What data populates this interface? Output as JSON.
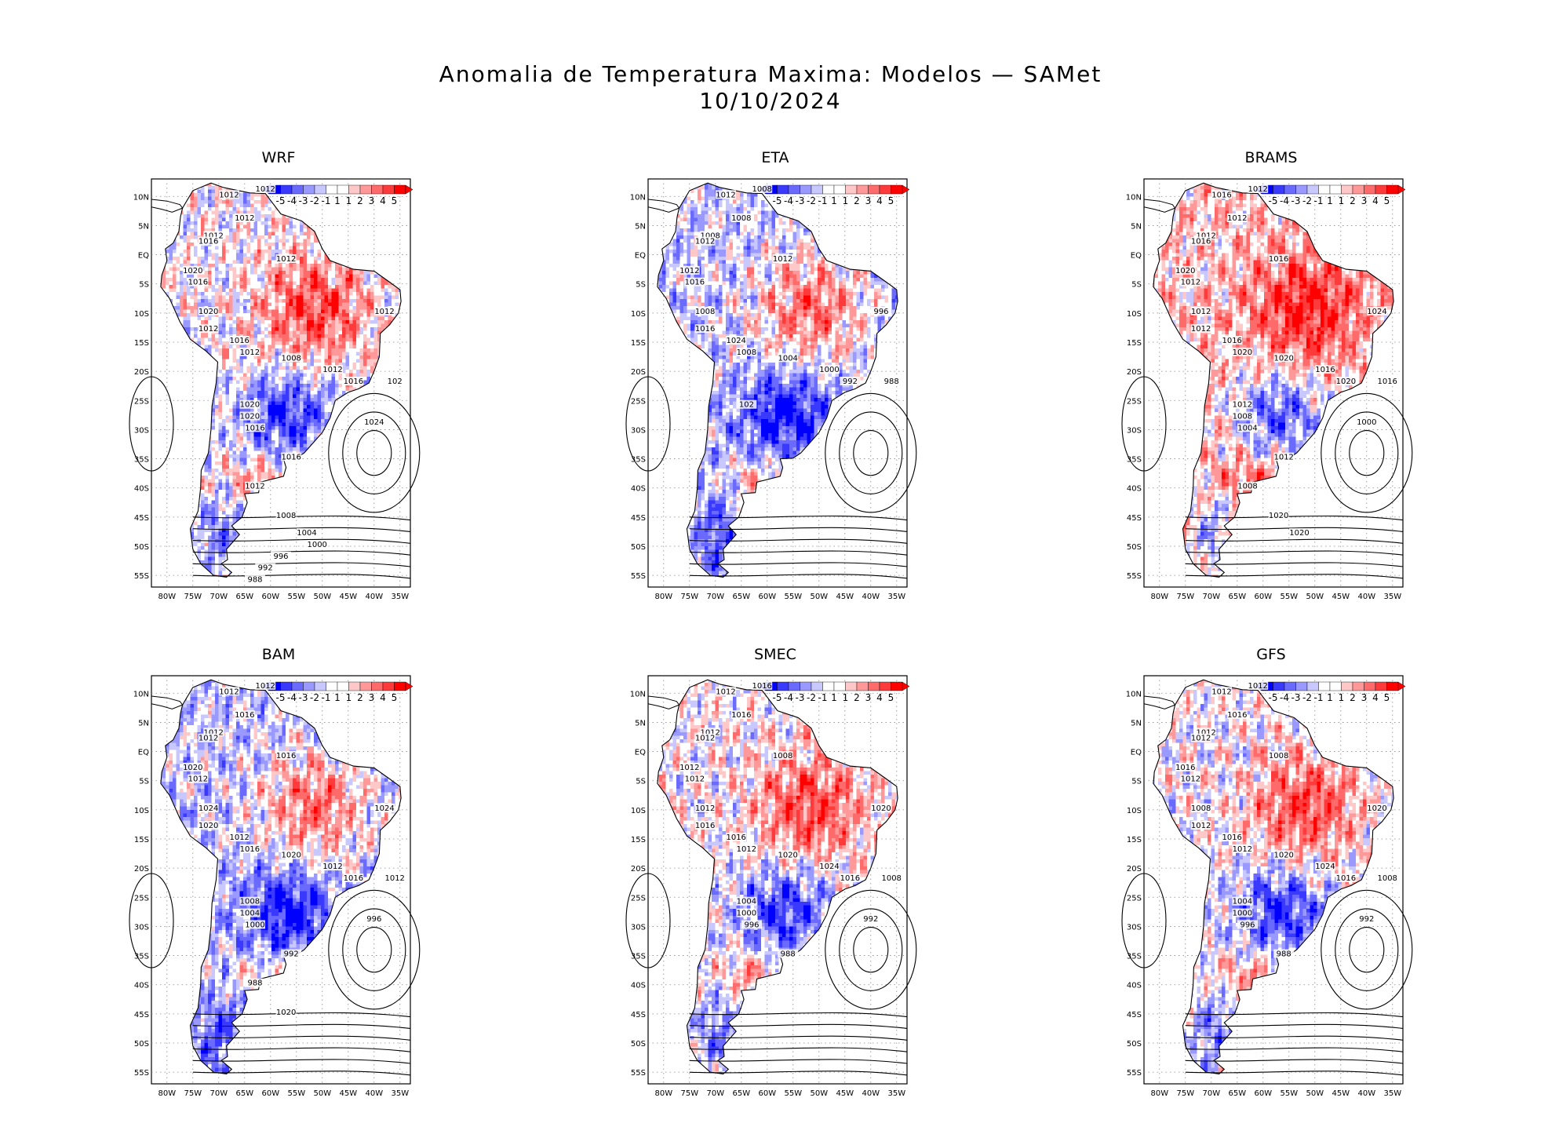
{
  "title": "Anomalia de Temperatura Maxima: Modelos — SAMet",
  "date": "10/10/2024",
  "colorbar": {
    "labels": [
      "-5",
      "-4",
      "-3",
      "-2",
      "-1",
      "1",
      "1",
      "2",
      "3",
      "4",
      "5"
    ],
    "colors": [
      "#0000ff",
      "#3a3aff",
      "#6a6aff",
      "#9999ff",
      "#c8c8ff",
      "#ffffff",
      "#ffffff",
      "#ffc8c8",
      "#ff9999",
      "#ff6a6a",
      "#ff3a3a",
      "#ff0000"
    ]
  },
  "axes": {
    "lat_ticks": [
      "10N",
      "5N",
      "EQ",
      "5S",
      "10S",
      "15S",
      "20S",
      "25S",
      "30S",
      "35S",
      "40S",
      "45S",
      "50S",
      "55S"
    ],
    "lon_ticks": [
      "80W",
      "75W",
      "70W",
      "65W",
      "60W",
      "55W",
      "50W",
      "45W",
      "40W",
      "35W"
    ]
  },
  "panels": [
    {
      "name": "WRF",
      "isobars": [
        "1012",
        "1012",
        "1012",
        "1012",
        "1016",
        "1020",
        "1016",
        "1012",
        "1020",
        "1012",
        "1016",
        "1012",
        "1008",
        "1012",
        "1012",
        "1016",
        "102",
        "1020",
        "1020",
        "1016",
        "1024",
        "1016",
        "1012",
        "1008",
        "1004",
        "1000",
        "996",
        "992",
        "988"
      ]
    },
    {
      "name": "ETA",
      "isobars": [
        "1012",
        "1008",
        "1008",
        "1008",
        "1012",
        "1012",
        "1016",
        "1012",
        "1008",
        "1016",
        "1024",
        "1008",
        "1004",
        "1000",
        "996",
        "992",
        "988",
        "102"
      ]
    },
    {
      "name": "BRAMS",
      "isobars": [
        "1016",
        "1012",
        "1012",
        "1012",
        "1016",
        "1020",
        "1012",
        "1016",
        "1012",
        "1012",
        "1016",
        "1020",
        "1020",
        "1016",
        "1024",
        "1020",
        "1016",
        "1012",
        "1008",
        "1004",
        "1000",
        "1012",
        "1008",
        "1020",
        "1020"
      ]
    },
    {
      "name": "BAM",
      "isobars": [
        "1012",
        "1012",
        "1016",
        "1012",
        "1012",
        "1020",
        "1012",
        "1016",
        "1024",
        "1020",
        "1012",
        "1016",
        "1020",
        "1012",
        "1024",
        "1016",
        "1012",
        "1008",
        "1004",
        "1000",
        "996",
        "992",
        "988",
        "1020"
      ]
    },
    {
      "name": "SMEC",
      "isobars": [
        "1012",
        "1016",
        "1016",
        "1012",
        "1012",
        "1012",
        "1012",
        "1008",
        "1012",
        "1016",
        "1016",
        "1012",
        "1020",
        "1024",
        "1020",
        "1016",
        "1008",
        "1004",
        "1000",
        "996",
        "992",
        "988"
      ]
    },
    {
      "name": "GFS",
      "isobars": [
        "1012",
        "1012",
        "1016",
        "1012",
        "1012",
        "1016",
        "1012",
        "1008",
        "1008",
        "1012",
        "1016",
        "1012",
        "1020",
        "1024",
        "1020",
        "1016",
        "1008",
        "1004",
        "1000",
        "996",
        "992",
        "988"
      ]
    }
  ]
}
